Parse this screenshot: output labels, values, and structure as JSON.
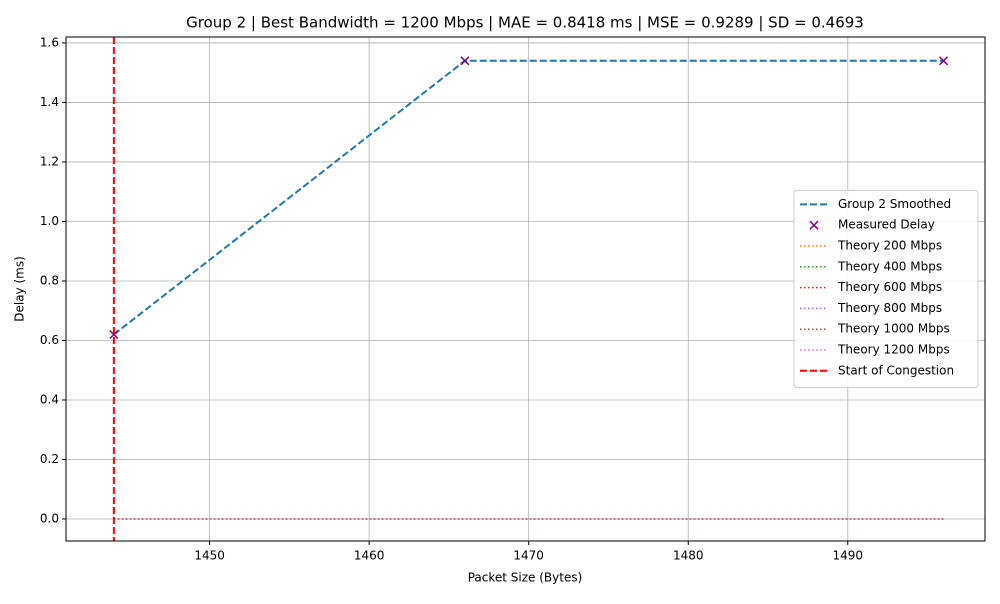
{
  "chart_data": {
    "type": "line",
    "title": "Group 2 | Best Bandwidth = 1200 Mbps | MAE = 0.8418 ms | MSE = 0.9289 | SD = 0.4693",
    "x_label": "Packet Size (Bytes)",
    "y_label": "Delay (ms)",
    "x": [
      1444,
      1466,
      1496
    ],
    "series": [
      {
        "name": "Group 2 Smoothed",
        "color": "#1f77b4",
        "style": "dashed",
        "values": [
          0.62,
          1.54,
          1.54
        ]
      },
      {
        "name": "Measured Delay",
        "color": "#800080",
        "style": "marker",
        "values": [
          0.62,
          1.54,
          1.54
        ]
      },
      {
        "name": "Theory 200 Mbps",
        "color": "#ff7f0e",
        "style": "dotted",
        "values": [
          0,
          0,
          0
        ]
      },
      {
        "name": "Theory 400 Mbps",
        "color": "#2ca02c",
        "style": "dotted",
        "values": [
          0,
          0,
          0
        ]
      },
      {
        "name": "Theory 600 Mbps",
        "color": "#d62728",
        "style": "dotted",
        "values": [
          0,
          0,
          0
        ]
      },
      {
        "name": "Theory 800 Mbps",
        "color": "#9467bd",
        "style": "dotted",
        "values": [
          0,
          0,
          0
        ]
      },
      {
        "name": "Theory 1000 Mbps",
        "color": "#8c564b",
        "style": "dotted",
        "values": [
          0,
          0,
          0
        ]
      },
      {
        "name": "Theory 1200 Mbps",
        "color": "#e377c2",
        "style": "dotted",
        "values": [
          0,
          0,
          0
        ]
      }
    ],
    "vlines": [
      {
        "name": "Start of Congestion",
        "color": "#ff0000",
        "x": 1444
      }
    ],
    "xlim": [
      1441,
      1498.6
    ],
    "ylim": [
      -0.074,
      1.62
    ],
    "xticks": [
      1450,
      1460,
      1470,
      1480,
      1490
    ],
    "yticks": [
      {
        "value": 0,
        "label": "0.0"
      },
      0.2,
      0.4,
      0.6,
      0.8,
      {
        "value": 1,
        "label": "1.0"
      },
      1.2,
      1.4,
      1.6
    ],
    "grid": true,
    "legend": "right"
  }
}
